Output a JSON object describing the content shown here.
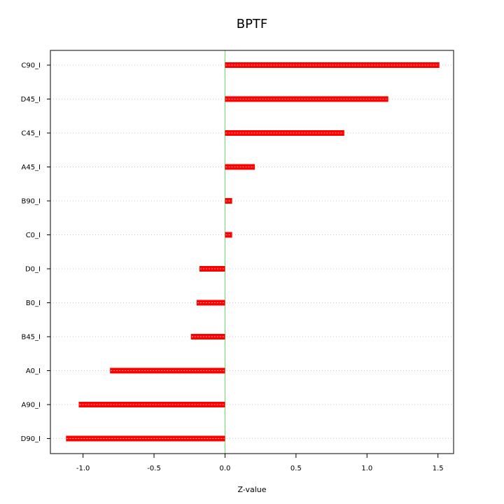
{
  "chart_data": {
    "type": "bar",
    "orientation": "horizontal",
    "title": "BPTF",
    "xlabel": "Z-value",
    "ylabel": "",
    "categories": [
      "C90_I",
      "D45_I",
      "C45_I",
      "A45_I",
      "B90_I",
      "C0_I",
      "D0_I",
      "B0_I",
      "B45_I",
      "A0_I",
      "A90_I",
      "D90_I"
    ],
    "values": [
      1.51,
      1.15,
      0.84,
      0.21,
      0.05,
      0.05,
      -0.18,
      -0.2,
      -0.24,
      -0.81,
      -1.03,
      -1.12
    ],
    "xlim": [
      -1.23,
      1.61
    ],
    "xticks": [
      -1.0,
      -0.5,
      0.0,
      0.5,
      1.0,
      1.5
    ],
    "xtick_labels": [
      "-1.0",
      "-0.5",
      "0.0",
      "0.5",
      "1.0",
      "1.5"
    ],
    "reference_line": 0,
    "grid": "horizontal dotted",
    "colors": {
      "bar": "#ff0000",
      "bar_highlight": "#ffb0b0",
      "zero_line": "#66dd66",
      "grid": "#c8c8c8",
      "frame": "#000000"
    }
  }
}
